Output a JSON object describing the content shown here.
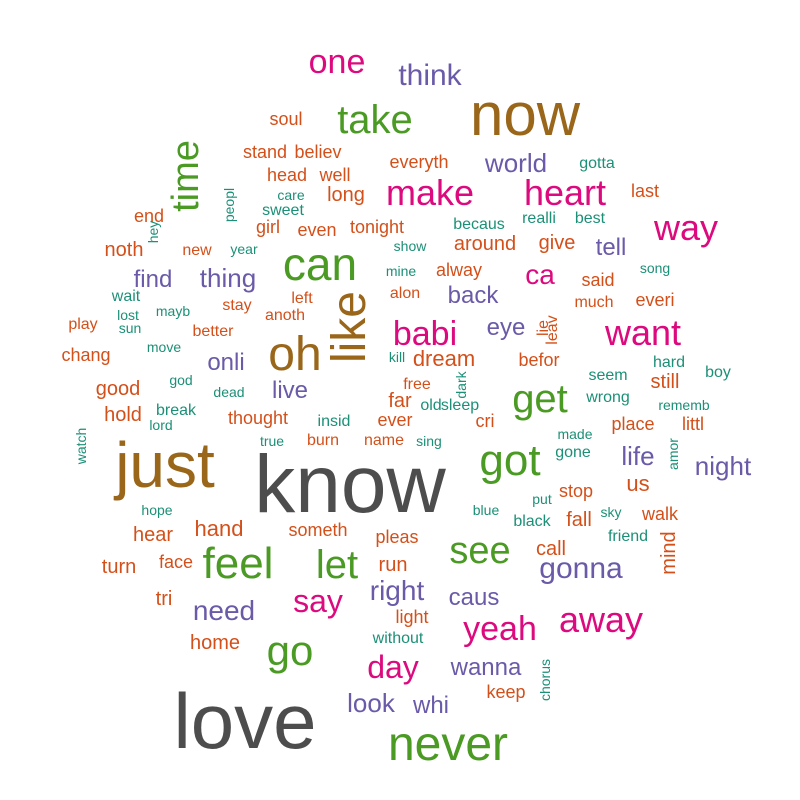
{
  "palette": {
    "gray": "#4d4d4d",
    "brown": "#99661a",
    "green": "#4a9a24",
    "magenta": "#dc0a7e",
    "purple": "#6a5aa8",
    "orange": "#d4501a",
    "teal": "#1c9077"
  },
  "words": [
    {
      "text": "know",
      "color": "gray"
    },
    {
      "text": "love",
      "color": "gray"
    },
    {
      "text": "just",
      "color": "brown"
    },
    {
      "text": "now",
      "color": "brown"
    },
    {
      "text": "like",
      "color": "brown"
    },
    {
      "text": "oh",
      "color": "brown"
    },
    {
      "text": "never",
      "color": "green"
    },
    {
      "text": "can",
      "color": "green"
    },
    {
      "text": "got",
      "color": "green"
    },
    {
      "text": "feel",
      "color": "green"
    },
    {
      "text": "let",
      "color": "green"
    },
    {
      "text": "take",
      "color": "green"
    },
    {
      "text": "time",
      "color": "green"
    },
    {
      "text": "see",
      "color": "green"
    },
    {
      "text": "go",
      "color": "green"
    },
    {
      "text": "get",
      "color": "green"
    },
    {
      "text": "make",
      "color": "magenta"
    },
    {
      "text": "heart",
      "color": "magenta"
    },
    {
      "text": "way",
      "color": "magenta"
    },
    {
      "text": "want",
      "color": "magenta"
    },
    {
      "text": "babi",
      "color": "magenta"
    },
    {
      "text": "one",
      "color": "magenta"
    },
    {
      "text": "away",
      "color": "magenta"
    },
    {
      "text": "yeah",
      "color": "magenta"
    },
    {
      "text": "say",
      "color": "magenta"
    },
    {
      "text": "day",
      "color": "magenta"
    },
    {
      "text": "ca",
      "color": "magenta"
    },
    {
      "text": "think",
      "color": "purple"
    },
    {
      "text": "world",
      "color": "purple"
    },
    {
      "text": "tell",
      "color": "purple"
    },
    {
      "text": "thing",
      "color": "purple"
    },
    {
      "text": "find",
      "color": "purple"
    },
    {
      "text": "back",
      "color": "purple"
    },
    {
      "text": "eye",
      "color": "purple"
    },
    {
      "text": "onli",
      "color": "purple"
    },
    {
      "text": "live",
      "color": "purple"
    },
    {
      "text": "life",
      "color": "purple"
    },
    {
      "text": "night",
      "color": "purple"
    },
    {
      "text": "gonna",
      "color": "purple"
    },
    {
      "text": "caus",
      "color": "purple"
    },
    {
      "text": "need",
      "color": "purple"
    },
    {
      "text": "right",
      "color": "purple"
    },
    {
      "text": "wanna",
      "color": "purple"
    },
    {
      "text": "look",
      "color": "purple"
    },
    {
      "text": "whi",
      "color": "purple"
    },
    {
      "text": "soul",
      "color": "orange"
    },
    {
      "text": "stand",
      "color": "orange"
    },
    {
      "text": "believ",
      "color": "orange"
    },
    {
      "text": "everyth",
      "color": "orange"
    },
    {
      "text": "head",
      "color": "orange"
    },
    {
      "text": "well",
      "color": "orange"
    },
    {
      "text": "long",
      "color": "orange"
    },
    {
      "text": "last",
      "color": "orange"
    },
    {
      "text": "end",
      "color": "orange"
    },
    {
      "text": "girl",
      "color": "orange"
    },
    {
      "text": "even",
      "color": "orange"
    },
    {
      "text": "tonight",
      "color": "orange"
    },
    {
      "text": "noth",
      "color": "orange"
    },
    {
      "text": "around",
      "color": "orange"
    },
    {
      "text": "give",
      "color": "orange"
    },
    {
      "text": "new",
      "color": "orange"
    },
    {
      "text": "alway",
      "color": "orange"
    },
    {
      "text": "said",
      "color": "orange"
    },
    {
      "text": "left",
      "color": "orange"
    },
    {
      "text": "alon",
      "color": "orange"
    },
    {
      "text": "much",
      "color": "orange"
    },
    {
      "text": "everi",
      "color": "orange"
    },
    {
      "text": "play",
      "color": "orange"
    },
    {
      "text": "stay",
      "color": "orange"
    },
    {
      "text": "anoth",
      "color": "orange"
    },
    {
      "text": "better",
      "color": "orange"
    },
    {
      "text": "leav",
      "color": "orange"
    },
    {
      "text": "lie",
      "color": "orange"
    },
    {
      "text": "chang",
      "color": "orange"
    },
    {
      "text": "dream",
      "color": "orange"
    },
    {
      "text": "befor",
      "color": "orange"
    },
    {
      "text": "good",
      "color": "orange"
    },
    {
      "text": "still",
      "color": "orange"
    },
    {
      "text": "free",
      "color": "orange"
    },
    {
      "text": "far",
      "color": "orange"
    },
    {
      "text": "hold",
      "color": "orange"
    },
    {
      "text": "thought",
      "color": "orange"
    },
    {
      "text": "ever",
      "color": "orange"
    },
    {
      "text": "cri",
      "color": "orange"
    },
    {
      "text": "place",
      "color": "orange"
    },
    {
      "text": "littl",
      "color": "orange"
    },
    {
      "text": "burn",
      "color": "orange"
    },
    {
      "text": "name",
      "color": "orange"
    },
    {
      "text": "us",
      "color": "orange"
    },
    {
      "text": "stop",
      "color": "orange"
    },
    {
      "text": "hear",
      "color": "orange"
    },
    {
      "text": "hand",
      "color": "orange"
    },
    {
      "text": "someth",
      "color": "orange"
    },
    {
      "text": "fall",
      "color": "orange"
    },
    {
      "text": "walk",
      "color": "orange"
    },
    {
      "text": "turn",
      "color": "orange"
    },
    {
      "text": "face",
      "color": "orange"
    },
    {
      "text": "pleas",
      "color": "orange"
    },
    {
      "text": "run",
      "color": "orange"
    },
    {
      "text": "call",
      "color": "orange"
    },
    {
      "text": "mind",
      "color": "orange"
    },
    {
      "text": "tri",
      "color": "orange"
    },
    {
      "text": "light",
      "color": "orange"
    },
    {
      "text": "home",
      "color": "orange"
    },
    {
      "text": "keep",
      "color": "orange"
    },
    {
      "text": "gotta",
      "color": "teal"
    },
    {
      "text": "care",
      "color": "teal"
    },
    {
      "text": "peopl",
      "color": "teal"
    },
    {
      "text": "sweet",
      "color": "teal"
    },
    {
      "text": "hey",
      "color": "teal"
    },
    {
      "text": "becaus",
      "color": "teal"
    },
    {
      "text": "realli",
      "color": "teal"
    },
    {
      "text": "best",
      "color": "teal"
    },
    {
      "text": "year",
      "color": "teal"
    },
    {
      "text": "show",
      "color": "teal"
    },
    {
      "text": "mine",
      "color": "teal"
    },
    {
      "text": "song",
      "color": "teal"
    },
    {
      "text": "wait",
      "color": "teal"
    },
    {
      "text": "lost",
      "color": "teal"
    },
    {
      "text": "mayb",
      "color": "teal"
    },
    {
      "text": "sun",
      "color": "teal"
    },
    {
      "text": "move",
      "color": "teal"
    },
    {
      "text": "kill",
      "color": "teal"
    },
    {
      "text": "dark",
      "color": "teal"
    },
    {
      "text": "hard",
      "color": "teal"
    },
    {
      "text": "boy",
      "color": "teal"
    },
    {
      "text": "god",
      "color": "teal"
    },
    {
      "text": "dead",
      "color": "teal"
    },
    {
      "text": "seem",
      "color": "teal"
    },
    {
      "text": "break",
      "color": "teal"
    },
    {
      "text": "lord",
      "color": "teal"
    },
    {
      "text": "insid",
      "color": "teal"
    },
    {
      "text": "old",
      "color": "teal"
    },
    {
      "text": "sleep",
      "color": "teal"
    },
    {
      "text": "wrong",
      "color": "teal"
    },
    {
      "text": "rememb",
      "color": "teal"
    },
    {
      "text": "watch",
      "color": "teal"
    },
    {
      "text": "true",
      "color": "teal"
    },
    {
      "text": "sing",
      "color": "teal"
    },
    {
      "text": "made",
      "color": "teal"
    },
    {
      "text": "gone",
      "color": "teal"
    },
    {
      "text": "amor",
      "color": "teal"
    },
    {
      "text": "hope",
      "color": "teal"
    },
    {
      "text": "blue",
      "color": "teal"
    },
    {
      "text": "put",
      "color": "teal"
    },
    {
      "text": "black",
      "color": "teal"
    },
    {
      "text": "sky",
      "color": "teal"
    },
    {
      "text": "friend",
      "color": "teal"
    },
    {
      "text": "without",
      "color": "teal"
    },
    {
      "text": "chorus",
      "color": "teal"
    }
  ]
}
